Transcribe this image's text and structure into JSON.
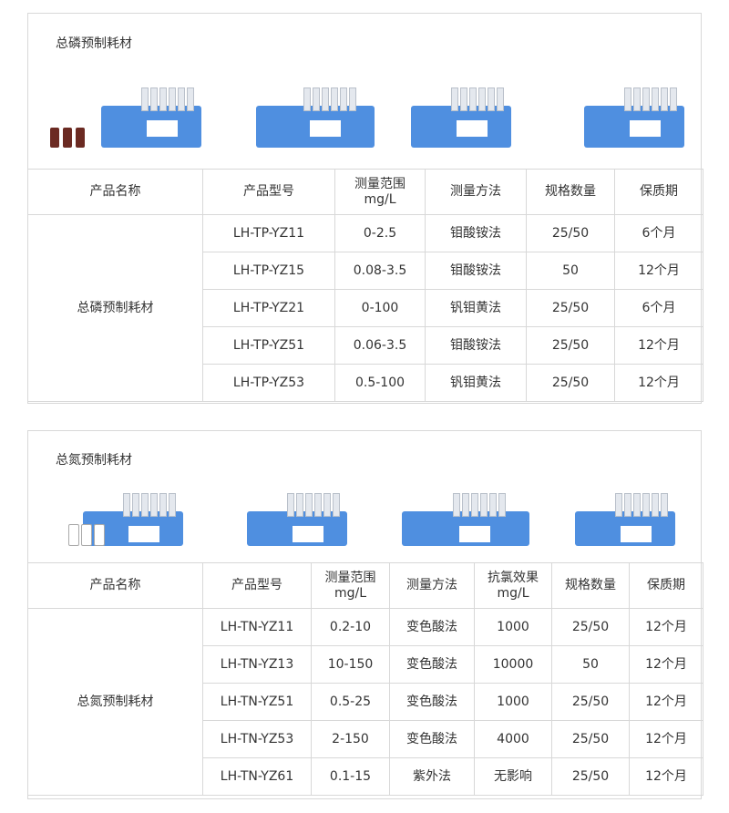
{
  "sections": [
    {
      "title": "总磷预制耗材",
      "headers": [
        "产品名称",
        "产品型号",
        "测量范围\nmg/L",
        "测量方法",
        "规格数量",
        "保质期"
      ],
      "product_name": "总磷预制耗材",
      "rows": [
        [
          "LH-TP-YZ11",
          "0-2.5",
          "钼酸铵法",
          "25/50",
          "6个月"
        ],
        [
          "LH-TP-YZ15",
          "0.08-3.5",
          "钼酸铵法",
          "50",
          "12个月"
        ],
        [
          "LH-TP-YZ21",
          "0-100",
          "钒钼黄法",
          "25/50",
          "6个月"
        ],
        [
          "LH-TP-YZ51",
          "0.06-3.5",
          "钼酸铵法",
          "25/50",
          "12个月"
        ],
        [
          "LH-TP-YZ53",
          "0.5-100",
          "钒钼黄法",
          "25/50",
          "12个月"
        ]
      ]
    },
    {
      "title": "总氮预制耗材",
      "headers": [
        "产品名称",
        "产品型号",
        "测量范围\nmg/L",
        "测量方法",
        "抗氯效果\nmg/L",
        "规格数量",
        "保质期"
      ],
      "product_name": "总氮预制耗材",
      "rows": [
        [
          "LH-TN-YZ11",
          "0.2-10",
          "变色酸法",
          "1000",
          "25/50",
          "12个月"
        ],
        [
          "LH-TN-YZ13",
          "10-150",
          "变色酸法",
          "10000",
          "50",
          "12个月"
        ],
        [
          "LH-TN-YZ51",
          "0.5-25",
          "变色酸法",
          "1000",
          "25/50",
          "12个月"
        ],
        [
          "LH-TN-YZ53",
          "2-150",
          "变色酸法",
          "4000",
          "25/50",
          "12个月"
        ],
        [
          "LH-TN-YZ61",
          "0.1-15",
          "紫外法",
          "无影响",
          "25/50",
          "12个月"
        ]
      ]
    }
  ],
  "colors": {
    "kit_blue": "#4f8fe0",
    "border": "#d8d8d8"
  }
}
